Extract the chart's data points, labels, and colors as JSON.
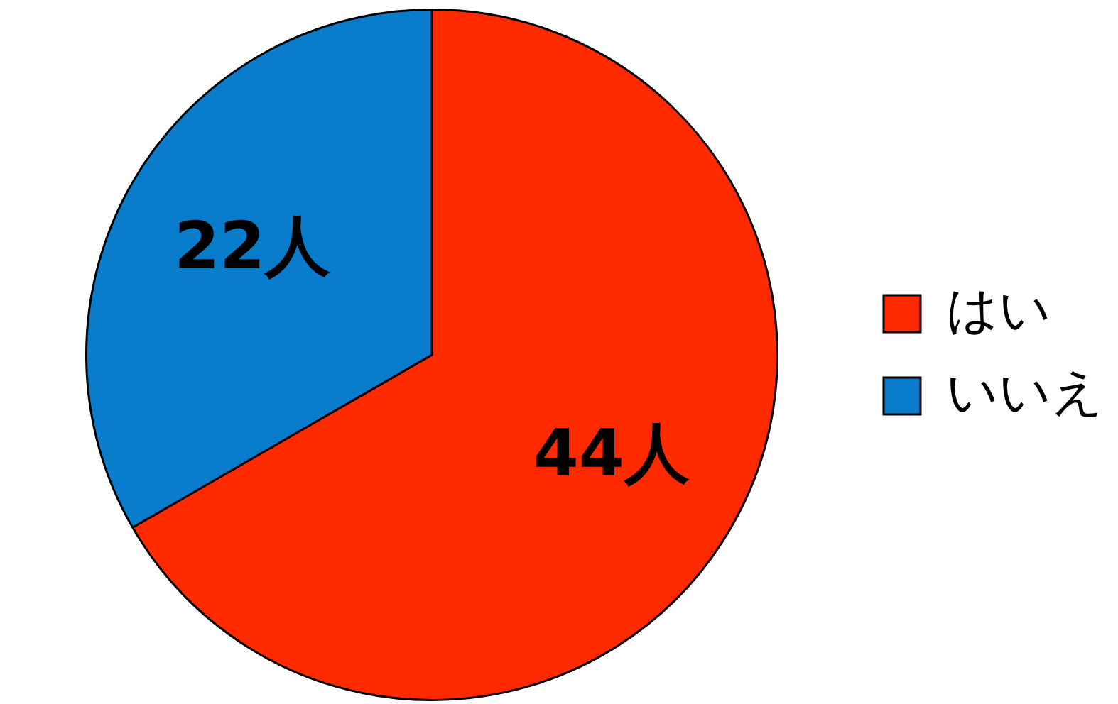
{
  "chart_data": {
    "type": "pie",
    "categories": [
      "はい",
      "いいえ"
    ],
    "values": [
      44,
      22
    ],
    "colors": [
      "#ff2a00",
      "#0a7ccc"
    ],
    "value_labels": [
      "44人",
      "22人"
    ],
    "legend": "right"
  }
}
